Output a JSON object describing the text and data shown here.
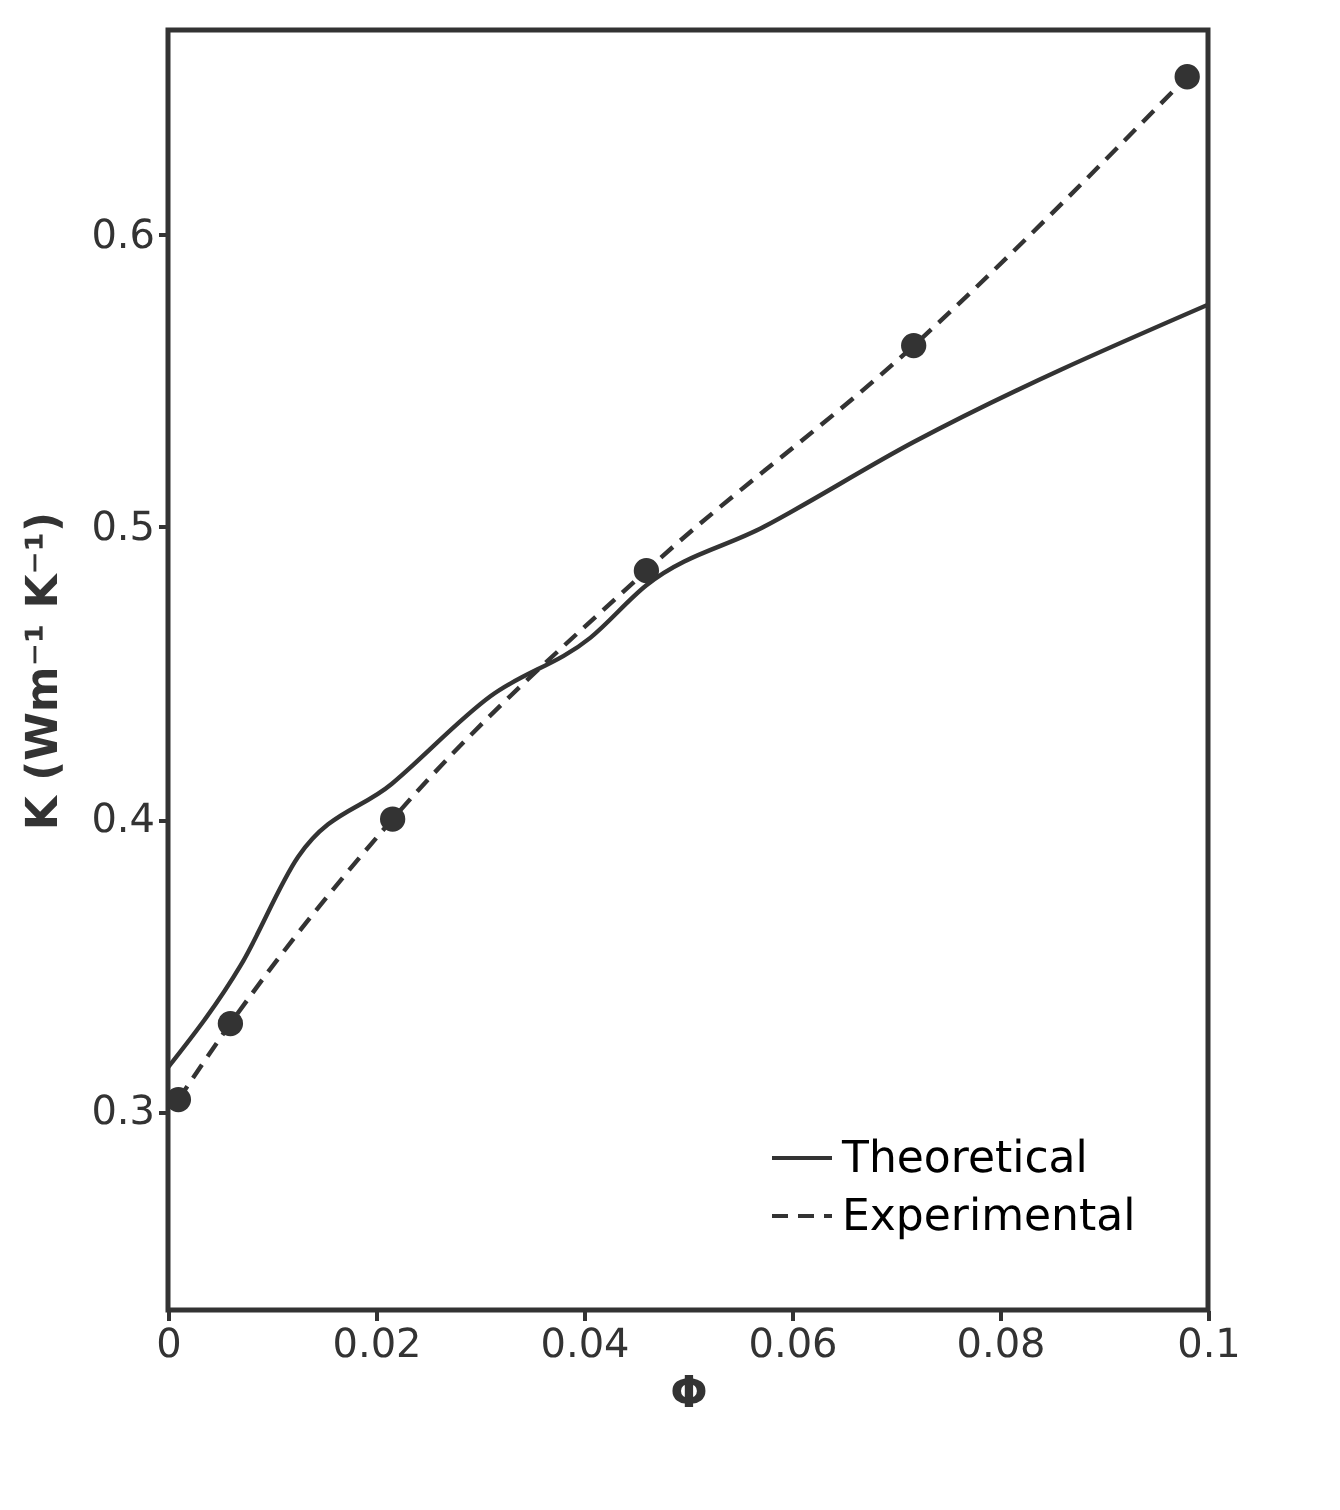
{
  "chart_data": {
    "type": "line",
    "xlabel": "Φ",
    "ylabel": "K (Wm⁻¹ K⁻¹)",
    "xlim": [
      0,
      0.1
    ],
    "xticks": [
      0,
      0.02,
      0.04,
      0.06,
      0.08,
      0.1
    ],
    "ylim": [
      0.232,
      0.67
    ],
    "yticks": [
      0.3,
      0.4,
      0.5,
      0.6
    ],
    "grid": false,
    "legend": "bottom right",
    "series": [
      {
        "name": "Theoretical",
        "color": "#333333",
        "line_style": "solid",
        "marker": "none",
        "x": [
          0,
          0.007,
          0.0125,
          0.0215,
          0.031,
          0.0406,
          0.046,
          0.0573,
          0.0717,
          0.1
        ],
        "values": [
          0.315,
          0.35,
          0.387,
          0.412,
          0.442,
          0.462,
          0.48,
          0.5,
          0.529,
          0.576
        ]
      },
      {
        "name": "Experimental",
        "color": "#333333",
        "line_style": "dashed",
        "marker": "circle",
        "x": [
          0.001,
          0.006,
          0.0216,
          0.046,
          0.0717,
          0.098
        ],
        "values": [
          0.304,
          0.33,
          0.4,
          0.485,
          0.562,
          0.654
        ]
      }
    ]
  }
}
